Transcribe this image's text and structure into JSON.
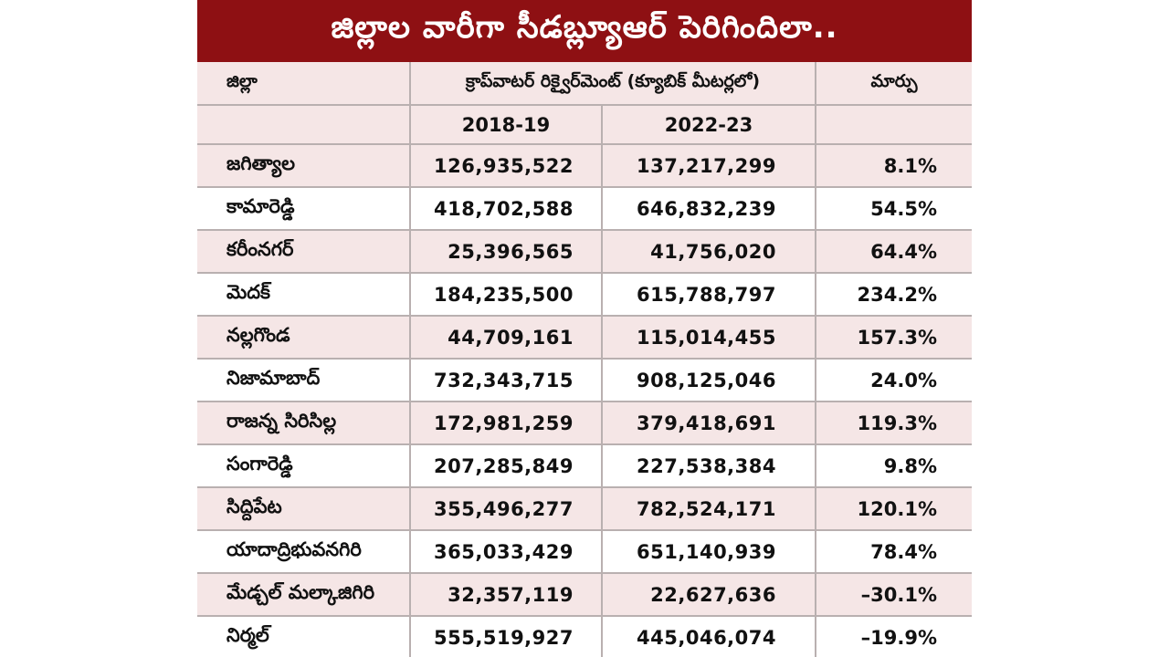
{
  "title": "జిల్లాల వారీగా సీడబ్ల్యూఆర్ పెరిగిందిలా..",
  "header": {
    "district": "జిల్లా",
    "crop_water": "క్రాప్‌వాటర్ రిక్వైర్‌మెంట్ (క్యూబిక్ మీటర్లలో)",
    "change": "మార్పు",
    "year1": "2018-19",
    "year2": "2022-23"
  },
  "rows": [
    {
      "district": "జగిత్యాల",
      "y2018": "126,935,522",
      "y2022": "137,217,299",
      "change": "8.1%"
    },
    {
      "district": "కామారెడ్డి",
      "y2018": "418,702,588",
      "y2022": "646,832,239",
      "change": "54.5%"
    },
    {
      "district": "కరీంనగర్",
      "y2018": "25,396,565",
      "y2022": "41,756,020",
      "change": "64.4%"
    },
    {
      "district": "మెదక్",
      "y2018": "184,235,500",
      "y2022": "615,788,797",
      "change": "234.2%"
    },
    {
      "district": "నల్లగొండ",
      "y2018": "44,709,161",
      "y2022": "115,014,455",
      "change": "157.3%"
    },
    {
      "district": "నిజామాబాద్",
      "y2018": "732,343,715",
      "y2022": "908,125,046",
      "change": "24.0%"
    },
    {
      "district": "రాజన్న సిరిసిల్ల",
      "y2018": "172,981,259",
      "y2022": "379,418,691",
      "change": "119.3%"
    },
    {
      "district": "సంగారెడ్డి",
      "y2018": "207,285,849",
      "y2022": "227,538,384",
      "change": "9.8%"
    },
    {
      "district": "సిద్దిపేట",
      "y2018": "355,496,277",
      "y2022": "782,524,171",
      "change": "120.1%"
    },
    {
      "district": "యాదాద్రిభువనగిరి",
      "y2018": "365,033,429",
      "y2022": "651,140,939",
      "change": "78.4%"
    },
    {
      "district": "మేడ్చల్ మల్కాజిగిరి",
      "y2018": "32,357,119",
      "y2022": "22,627,636",
      "change": "–30.1%"
    },
    {
      "district": "నిర్మల్",
      "y2018": "555,519,927",
      "y2022": "445,046,074",
      "change": "–19.9%"
    }
  ]
}
